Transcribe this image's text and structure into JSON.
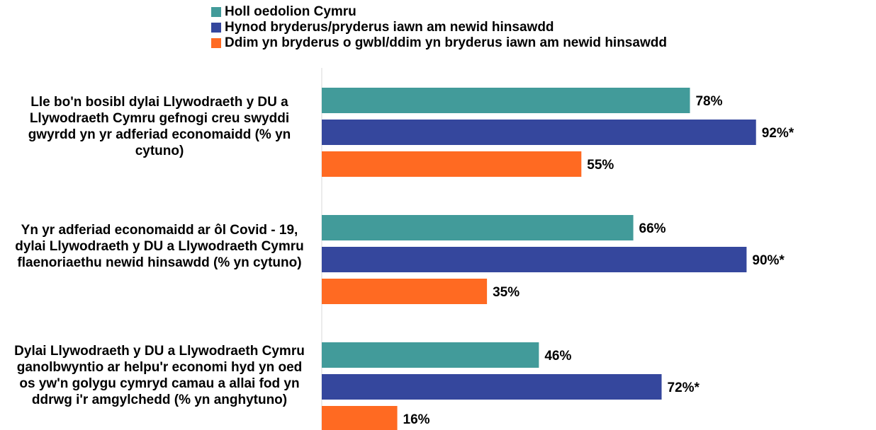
{
  "legend": [
    {
      "label": "Holl oedolion Cymru",
      "color": "#429B9A"
    },
    {
      "label": "Hynod bryderus/pryderus iawn am newid hinsawdd",
      "color": "#35479D"
    },
    {
      "label": "Ddim yn bryderus o gwbl/ddim yn bryderus iawn am newid hinsawdd",
      "color": "#FF6A22"
    }
  ],
  "chart_data": {
    "type": "bar",
    "orientation": "horizontal",
    "categories": [
      "Lle bo'n bosibl dylai Llywodraeth y DU a Llywodraeth Cymru gefnogi creu swyddi gwyrdd yn yr adferiad economaidd (% yn cytuno)",
      "Yn yr adferiad economaidd ar ôl Covid - 19, dylai Llywodraeth y DU a Llywodraeth Cymru flaenoriaethu newid hinsawdd (% yn cytuno)",
      "Dylai Llywodraeth y DU a Llywodraeth Cymru ganolbwyntio ar helpu'r economi hyd yn oed os yw'n golygu cymryd camau a allai fod yn ddrwg i'r amgylchedd (% yn anghytuno)"
    ],
    "series": [
      {
        "name": "Holl oedolion Cymru",
        "color": "#429B9A",
        "values": [
          78,
          66,
          46
        ],
        "labels": [
          "78%",
          "66%",
          "46%"
        ]
      },
      {
        "name": "Hynod bryderus/pryderus iawn am newid hinsawdd",
        "color": "#35479D",
        "values": [
          92,
          90,
          72
        ],
        "labels": [
          "92%*",
          "90%*",
          "72%*"
        ]
      },
      {
        "name": "Ddim yn bryderus o gwbl/ddim yn bryderus iawn am newid hinsawdd",
        "color": "#FF6A22",
        "values": [
          55,
          35,
          16
        ],
        "labels": [
          "55%",
          "35%",
          "16%"
        ]
      }
    ],
    "xlim": [
      0,
      100
    ],
    "grid": false,
    "legend_position": "top"
  }
}
